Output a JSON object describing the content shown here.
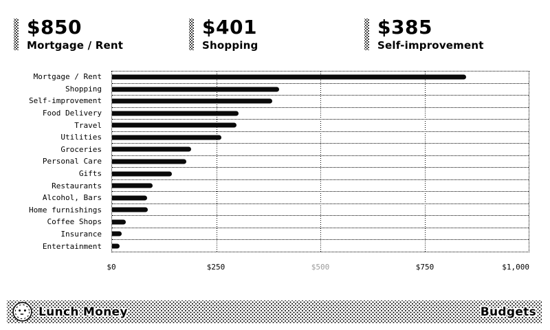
{
  "page": {
    "name": "Budgets",
    "brand": "Lunch Money"
  },
  "summary_cards": [
    {
      "amount": "$850",
      "label": "Mortgage / Rent"
    },
    {
      "amount": "$401",
      "label": "Shopping"
    },
    {
      "amount": "$385",
      "label": "Self-improvement"
    }
  ],
  "chart_data": {
    "type": "bar",
    "orientation": "horizontal",
    "title": "",
    "xlabel": "",
    "ylabel": "",
    "categories": [
      "Mortgage / Rent",
      "Shopping",
      "Self-improvement",
      "Food Delivery",
      "Travel",
      "Utilities",
      "Groceries",
      "Personal Care",
      "Gifts",
      "Restaurants",
      "Alcohol, Bars",
      "Home furnishings",
      "Coffee Shops",
      "Insurance",
      "Entertainment"
    ],
    "values": [
      850,
      401,
      385,
      303,
      298,
      263,
      189,
      178,
      143,
      97,
      84,
      85,
      33,
      23,
      18
    ],
    "xlim": [
      0,
      1000
    ],
    "xticks": [
      "$0",
      "$250",
      "$500",
      "$750",
      "$1,000"
    ],
    "xtick_values": [
      0,
      250,
      500,
      750,
      1000
    ],
    "muted_xtick_index": 2,
    "grid": "dotted",
    "bar_color": "#0a0a0a",
    "muted_tick_color": "#9b9b9b",
    "legend": "none"
  },
  "colors": {
    "accent": "#000000",
    "background": "#ffffff"
  }
}
